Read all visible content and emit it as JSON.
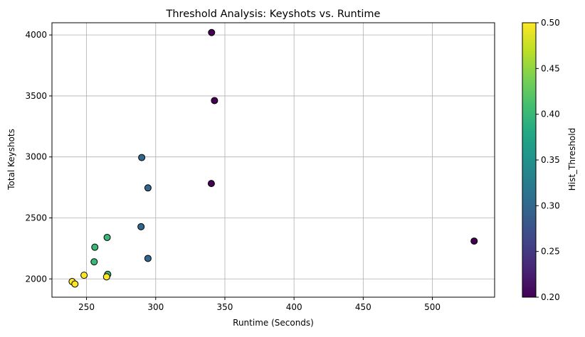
{
  "chart_data": {
    "type": "scatter",
    "title": "Threshold Analysis: Keyshots vs. Runtime",
    "xlabel": "Runtime (Seconds)",
    "ylabel": "Total Keyshots",
    "xlim": [
      225,
      545
    ],
    "ylim": [
      1850,
      4100
    ],
    "xticks": [
      250,
      300,
      350,
      400,
      450,
      500
    ],
    "yticks": [
      2000,
      2500,
      3000,
      3500,
      4000
    ],
    "grid": true,
    "colorbar": {
      "label": "Hist_Threshold",
      "range": [
        0.2,
        0.5
      ],
      "ticks": [
        "0.20",
        "0.25",
        "0.30",
        "0.35",
        "0.40",
        "0.45",
        "0.50"
      ],
      "colormap": "viridis"
    },
    "points": [
      {
        "x": 340.4,
        "y": 4020,
        "c": 0.2
      },
      {
        "x": 342.5,
        "y": 3462,
        "c": 0.2
      },
      {
        "x": 340.2,
        "y": 2782,
        "c": 0.2
      },
      {
        "x": 530.2,
        "y": 2310,
        "c": 0.2
      },
      {
        "x": 289.9,
        "y": 2995,
        "c": 0.3
      },
      {
        "x": 294.4,
        "y": 2746,
        "c": 0.3
      },
      {
        "x": 289.4,
        "y": 2428,
        "c": 0.3
      },
      {
        "x": 294.4,
        "y": 2168,
        "c": 0.3
      },
      {
        "x": 264.9,
        "y": 2340,
        "c": 0.4
      },
      {
        "x": 256.0,
        "y": 2260,
        "c": 0.4
      },
      {
        "x": 255.5,
        "y": 2140,
        "c": 0.4
      },
      {
        "x": 265.3,
        "y": 2037,
        "c": 0.4
      },
      {
        "x": 248.2,
        "y": 2030,
        "c": 0.5
      },
      {
        "x": 264.5,
        "y": 2017,
        "c": 0.5
      },
      {
        "x": 239.6,
        "y": 1978,
        "c": 0.5
      },
      {
        "x": 241.6,
        "y": 1958,
        "c": 0.5
      }
    ]
  }
}
